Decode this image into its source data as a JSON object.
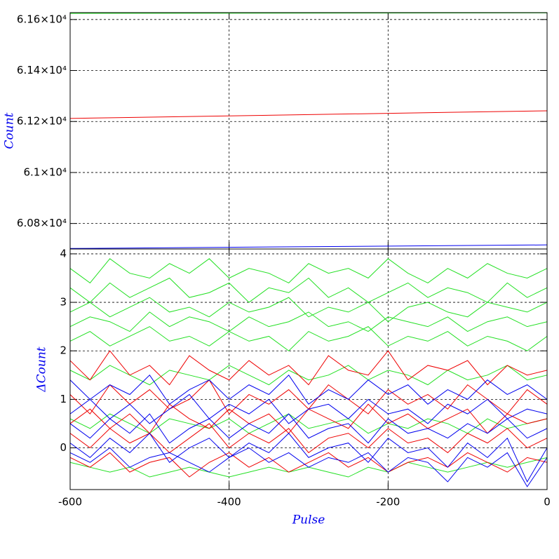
{
  "chart_data": [
    {
      "type": "line",
      "ylabel": "Count",
      "x": [
        -600,
        0
      ],
      "series": [
        {
          "color": "#22e022",
          "values": [
            61624,
            61626
          ]
        },
        {
          "color": "#ee0000",
          "values": [
            61212,
            61242
          ]
        },
        {
          "color": "#0000ee",
          "values": [
            60702,
            60716
          ]
        }
      ],
      "xlim": [
        -600,
        0
      ],
      "xticks": [
        -600,
        -400,
        -200,
        0
      ],
      "xtick_labels": false,
      "ylim": [
        60700,
        61627
      ],
      "yticks": [
        {
          "value": 60800,
          "label": "6.08×10⁴"
        },
        {
          "value": 61000,
          "label": "6.1×10⁴"
        },
        {
          "value": 61200,
          "label": "6.12×10⁴"
        },
        {
          "value": 61400,
          "label": "6.14×10⁴"
        },
        {
          "value": 61600,
          "label": "6.16×10⁴"
        }
      ],
      "grid": true
    },
    {
      "type": "line",
      "ylabel": "ΔCount",
      "xlabel": "Pulse",
      "x": [
        -600,
        -575,
        -550,
        -525,
        -500,
        -475,
        -450,
        -425,
        -400,
        -375,
        -350,
        -325,
        -300,
        -275,
        -250,
        -225,
        -200,
        -175,
        -150,
        -125,
        -100,
        -75,
        -50,
        -25,
        0
      ],
      "series": [
        {
          "color": "#22e022",
          "values": [
            3.7,
            3.4,
            3.9,
            3.6,
            3.5,
            3.8,
            3.6,
            3.9,
            3.5,
            3.7,
            3.6,
            3.4,
            3.8,
            3.6,
            3.7,
            3.5,
            3.9,
            3.6,
            3.4,
            3.7,
            3.5,
            3.8,
            3.6,
            3.5,
            3.7
          ]
        },
        {
          "color": "#22e022",
          "values": [
            3.3,
            3.0,
            3.4,
            3.1,
            3.3,
            3.5,
            3.1,
            3.2,
            3.4,
            3.0,
            3.3,
            3.2,
            3.5,
            3.1,
            3.3,
            3.0,
            3.2,
            3.4,
            3.1,
            3.3,
            3.2,
            3.0,
            3.4,
            3.1,
            3.3
          ]
        },
        {
          "color": "#22e022",
          "values": [
            2.8,
            3.0,
            2.7,
            2.9,
            3.1,
            2.8,
            2.9,
            2.7,
            3.0,
            2.8,
            2.9,
            3.1,
            2.7,
            2.9,
            2.8,
            3.0,
            2.6,
            2.9,
            3.0,
            2.8,
            2.7,
            3.0,
            2.9,
            2.8,
            3.0
          ]
        },
        {
          "color": "#22e022",
          "values": [
            2.5,
            2.7,
            2.6,
            2.4,
            2.8,
            2.5,
            2.7,
            2.6,
            2.4,
            2.7,
            2.5,
            2.6,
            2.8,
            2.5,
            2.6,
            2.4,
            2.7,
            2.6,
            2.5,
            2.7,
            2.4,
            2.6,
            2.7,
            2.5,
            2.6
          ]
        },
        {
          "color": "#22e022",
          "values": [
            2.2,
            2.4,
            2.1,
            2.3,
            2.5,
            2.2,
            2.3,
            2.1,
            2.4,
            2.2,
            2.3,
            2.0,
            2.4,
            2.2,
            2.3,
            2.5,
            2.1,
            2.3,
            2.2,
            2.4,
            2.1,
            2.3,
            2.2,
            2.0,
            2.3
          ]
        },
        {
          "color": "#22e022",
          "values": [
            1.6,
            1.4,
            1.7,
            1.5,
            1.3,
            1.6,
            1.5,
            1.4,
            1.7,
            1.5,
            1.3,
            1.6,
            1.4,
            1.5,
            1.7,
            1.4,
            1.6,
            1.5,
            1.3,
            1.6,
            1.4,
            1.5,
            1.7,
            1.4,
            1.5
          ]
        },
        {
          "color": "#22e022",
          "values": [
            0.6,
            0.4,
            0.7,
            0.5,
            0.3,
            0.6,
            0.5,
            0.4,
            0.6,
            0.3,
            0.5,
            0.7,
            0.4,
            0.5,
            0.6,
            0.3,
            0.5,
            0.4,
            0.6,
            0.5,
            0.3,
            0.6,
            0.4,
            0.5,
            0.6
          ]
        },
        {
          "color": "#22e022",
          "values": [
            -0.3,
            -0.4,
            -0.5,
            -0.4,
            -0.6,
            -0.5,
            -0.4,
            -0.5,
            -0.6,
            -0.5,
            -0.4,
            -0.5,
            -0.4,
            -0.5,
            -0.6,
            -0.4,
            -0.5,
            -0.3,
            -0.4,
            -0.5,
            -0.4,
            -0.3,
            -0.4,
            -0.3,
            -0.2
          ]
        },
        {
          "color": "#ee0000",
          "values": [
            1.8,
            1.4,
            2.0,
            1.5,
            1.7,
            1.3,
            1.9,
            1.6,
            1.4,
            1.8,
            1.5,
            1.7,
            1.3,
            1.9,
            1.6,
            1.5,
            2.0,
            1.4,
            1.7,
            1.6,
            1.8,
            1.3,
            1.7,
            1.5,
            1.6
          ]
        },
        {
          "color": "#ee0000",
          "values": [
            1.1,
            0.7,
            1.3,
            0.9,
            1.2,
            0.8,
            1.0,
            1.4,
            0.7,
            1.1,
            0.9,
            1.2,
            0.8,
            1.3,
            1.0,
            0.7,
            1.2,
            0.9,
            1.1,
            0.8,
            1.3,
            1.0,
            0.7,
            1.2,
            0.9
          ]
        },
        {
          "color": "#ee0000",
          "values": [
            0.5,
            0.8,
            0.4,
            0.7,
            0.3,
            0.9,
            0.6,
            0.4,
            0.8,
            0.5,
            0.7,
            0.3,
            0.8,
            0.6,
            0.4,
            0.9,
            0.5,
            0.7,
            0.4,
            0.6,
            0.8,
            0.3,
            0.7,
            0.5,
            0.6
          ]
        },
        {
          "color": "#ee0000",
          "values": [
            0.3,
            0.0,
            0.4,
            0.1,
            0.3,
            -0.1,
            0.2,
            0.5,
            0.0,
            0.3,
            0.1,
            0.4,
            -0.1,
            0.2,
            0.3,
            0.0,
            0.4,
            0.1,
            0.2,
            -0.1,
            0.3,
            0.1,
            0.4,
            0.0,
            0.2
          ]
        },
        {
          "color": "#ee0000",
          "values": [
            -0.2,
            -0.4,
            -0.1,
            -0.5,
            -0.3,
            -0.2,
            -0.6,
            -0.3,
            -0.1,
            -0.4,
            -0.2,
            -0.5,
            -0.3,
            -0.1,
            -0.4,
            -0.2,
            -0.5,
            -0.3,
            -0.2,
            -0.4,
            -0.1,
            -0.3,
            -0.5,
            -0.2,
            -0.3
          ]
        },
        {
          "color": "#0000ee",
          "values": [
            1.4,
            1.0,
            1.3,
            1.1,
            1.5,
            0.9,
            1.2,
            1.4,
            1.0,
            1.3,
            1.1,
            1.5,
            0.9,
            1.2,
            1.0,
            1.4,
            1.1,
            1.3,
            0.9,
            1.2,
            1.0,
            1.4,
            1.1,
            1.3,
            1.0
          ]
        },
        {
          "color": "#0000ee",
          "values": [
            0.7,
            1.0,
            0.6,
            0.9,
            0.5,
            0.8,
            1.1,
            0.6,
            0.9,
            0.7,
            1.0,
            0.5,
            0.8,
            0.9,
            0.6,
            1.0,
            0.7,
            0.8,
            0.5,
            0.9,
            0.7,
            1.0,
            0.6,
            0.8,
            0.7
          ]
        },
        {
          "color": "#0000ee",
          "values": [
            0.5,
            0.2,
            0.6,
            0.3,
            0.7,
            0.1,
            0.4,
            0.6,
            0.2,
            0.5,
            0.3,
            0.7,
            0.2,
            0.4,
            0.5,
            0.1,
            0.6,
            0.3,
            0.4,
            0.2,
            0.5,
            0.3,
            0.6,
            0.2,
            0.4
          ]
        },
        {
          "color": "#0000ee",
          "values": [
            0.1,
            -0.2,
            0.2,
            -0.1,
            0.3,
            -0.3,
            0.0,
            0.2,
            -0.2,
            0.1,
            -0.1,
            0.3,
            -0.2,
            0.0,
            0.1,
            -0.3,
            0.2,
            -0.1,
            0.0,
            -0.4,
            0.1,
            -0.2,
            0.2,
            -0.7,
            0.0
          ]
        },
        {
          "color": "#0000ee",
          "values": [
            -0.1,
            -0.3,
            0.0,
            -0.4,
            -0.2,
            -0.1,
            -0.3,
            -0.5,
            -0.2,
            0.0,
            -0.3,
            -0.1,
            -0.4,
            -0.2,
            -0.3,
            -0.1,
            -0.5,
            -0.2,
            -0.3,
            -0.7,
            -0.2,
            -0.4,
            -0.1,
            -0.8,
            -0.2
          ]
        }
      ],
      "xlim": [
        -600,
        0
      ],
      "xticks": [
        -600,
        -400,
        -200,
        0
      ],
      "xtick_labels": true,
      "ylim": [
        -0.86,
        4.1
      ],
      "yticks": [
        0,
        1,
        2,
        3,
        4
      ],
      "grid": true
    }
  ]
}
